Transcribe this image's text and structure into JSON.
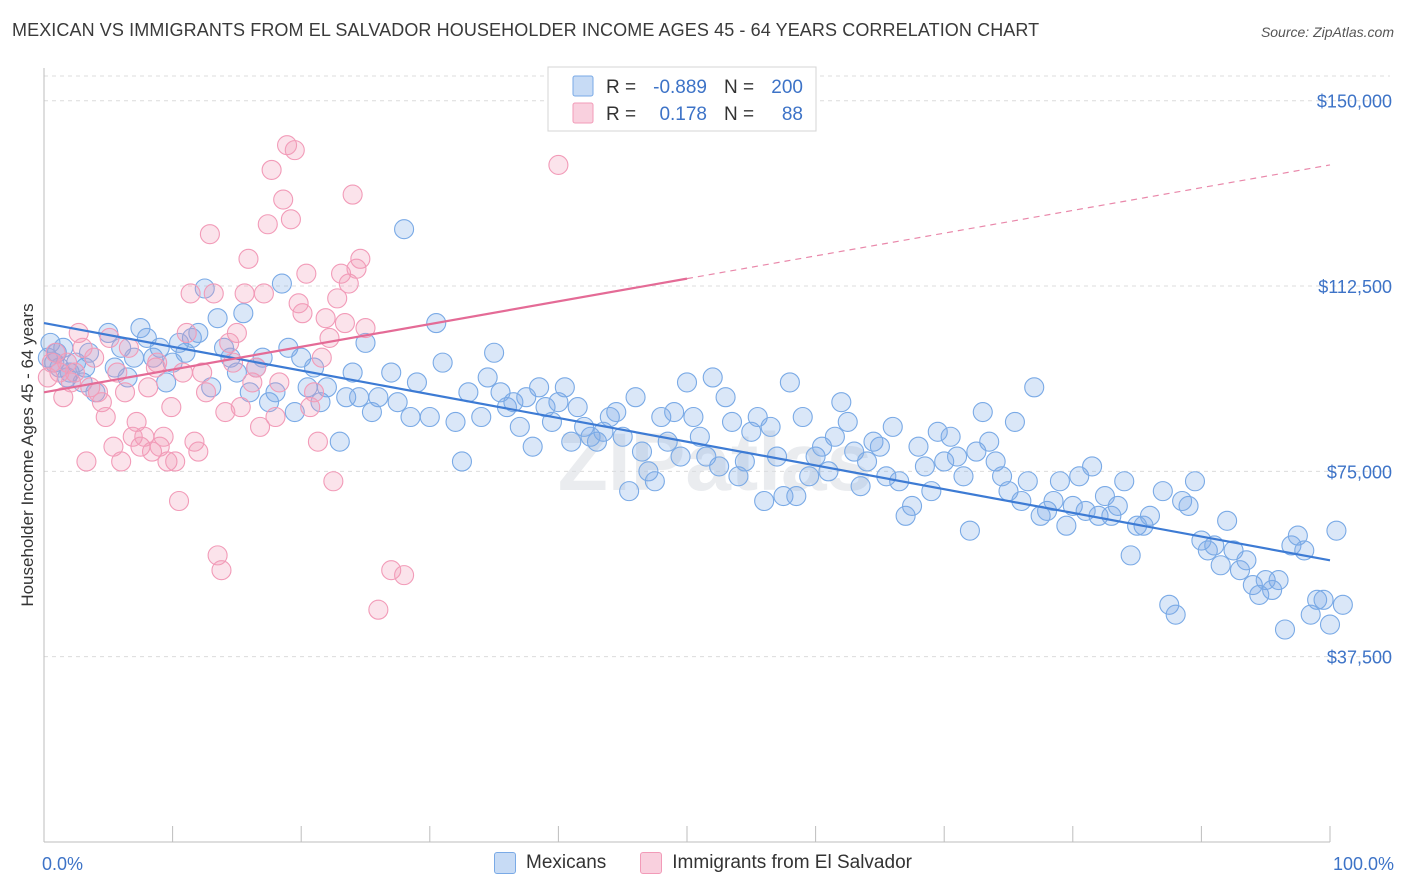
{
  "title": "MEXICAN VS IMMIGRANTS FROM EL SALVADOR HOUSEHOLDER INCOME AGES 45 - 64 YEARS CORRELATION CHART",
  "source": "Source: ZipAtlas.com",
  "watermark": "ZIPatlas",
  "chart_data": {
    "type": "scatter",
    "title": "MEXICAN VS IMMIGRANTS FROM EL SALVADOR HOUSEHOLDER INCOME AGES 45 - 64 YEARS CORRELATION CHART",
    "xlabel": "",
    "ylabel": "Householder Income Ages 45 - 64 years",
    "xlim": [
      0,
      100
    ],
    "ylim": [
      0,
      155000
    ],
    "x_tick_labels": [
      "0.0%",
      "100.0%"
    ],
    "y_ticks": [
      37500,
      75000,
      112500,
      150000
    ],
    "y_tick_labels": [
      "$37,500",
      "$75,000",
      "$112,500",
      "$150,000"
    ],
    "grid": "horizontal dashed",
    "legend_position": "top-center",
    "legend": [
      {
        "r_label": "R =",
        "r_value": "-0.889",
        "n_label": "N =",
        "n_value": "200"
      },
      {
        "r_label": "R =",
        "r_value": "0.178",
        "n_label": "N =",
        "n_value": "88"
      }
    ],
    "series": [
      {
        "name": "Mexicans",
        "color": "#7aaae6",
        "line_color": "#3d7bd4",
        "R": -0.889,
        "N": 200,
        "trend": {
          "x": [
            0,
            100
          ],
          "y": [
            105000,
            57000
          ],
          "dashed_from_x": null
        },
        "points": [
          [
            0.5,
            101000
          ],
          [
            0.8,
            97000
          ],
          [
            1.0,
            99000
          ],
          [
            1.2,
            96000
          ],
          [
            1.5,
            100000
          ],
          [
            2,
            95000
          ],
          [
            2.5,
            97000
          ],
          [
            3,
            93000
          ],
          [
            3.5,
            99000
          ],
          [
            4,
            91000
          ],
          [
            5,
            103000
          ],
          [
            5.5,
            96000
          ],
          [
            6,
            100000
          ],
          [
            7,
            98000
          ],
          [
            7.5,
            104000
          ],
          [
            8,
            102000
          ],
          [
            8.5,
            98000
          ],
          [
            9,
            100000
          ],
          [
            10,
            97000
          ],
          [
            10.5,
            101000
          ],
          [
            11,
            99000
          ],
          [
            12,
            103000
          ],
          [
            12.5,
            112000
          ],
          [
            13,
            92000
          ],
          [
            13.5,
            106000
          ],
          [
            14,
            100000
          ],
          [
            15,
            95000
          ],
          [
            15.5,
            107000
          ],
          [
            16,
            91000
          ],
          [
            17,
            98000
          ],
          [
            17.5,
            89000
          ],
          [
            18,
            91000
          ],
          [
            18.5,
            113000
          ],
          [
            19,
            100000
          ],
          [
            20,
            98000
          ],
          [
            20.5,
            92000
          ],
          [
            21,
            96000
          ],
          [
            21.5,
            89000
          ],
          [
            22,
            92000
          ],
          [
            23,
            81000
          ],
          [
            23.5,
            90000
          ],
          [
            24,
            95000
          ],
          [
            24.5,
            90000
          ],
          [
            25,
            101000
          ],
          [
            25.5,
            87000
          ],
          [
            26,
            90000
          ],
          [
            27,
            95000
          ],
          [
            27.5,
            89000
          ],
          [
            28,
            124000
          ],
          [
            28.5,
            86000
          ],
          [
            29,
            93000
          ],
          [
            30,
            86000
          ],
          [
            30.5,
            105000
          ],
          [
            31,
            97000
          ],
          [
            32,
            85000
          ],
          [
            32.5,
            77000
          ],
          [
            33,
            91000
          ],
          [
            34,
            86000
          ],
          [
            34.5,
            94000
          ],
          [
            35,
            99000
          ],
          [
            35.5,
            91000
          ],
          [
            36,
            88000
          ],
          [
            36.5,
            89000
          ],
          [
            37,
            84000
          ],
          [
            37.5,
            90000
          ],
          [
            38,
            80000
          ],
          [
            38.5,
            92000
          ],
          [
            39,
            88000
          ],
          [
            39.5,
            85000
          ],
          [
            40,
            89000
          ],
          [
            40.5,
            92000
          ],
          [
            41,
            81000
          ],
          [
            41.5,
            88000
          ],
          [
            42,
            84000
          ],
          [
            42.5,
            82000
          ],
          [
            43,
            81000
          ],
          [
            43.5,
            83000
          ],
          [
            44,
            86000
          ],
          [
            44.5,
            87000
          ],
          [
            45,
            82000
          ],
          [
            45.5,
            71000
          ],
          [
            46,
            90000
          ],
          [
            46.5,
            79000
          ],
          [
            47,
            75000
          ],
          [
            47.5,
            73000
          ],
          [
            48,
            86000
          ],
          [
            48.5,
            81000
          ],
          [
            49,
            87000
          ],
          [
            49.5,
            78000
          ],
          [
            50,
            93000
          ],
          [
            50.5,
            86000
          ],
          [
            51,
            82000
          ],
          [
            51.5,
            78000
          ],
          [
            52,
            94000
          ],
          [
            52.5,
            76000
          ],
          [
            53,
            90000
          ],
          [
            53.5,
            85000
          ],
          [
            54,
            74000
          ],
          [
            54.5,
            77000
          ],
          [
            55,
            83000
          ],
          [
            55.5,
            86000
          ],
          [
            56,
            69000
          ],
          [
            56.5,
            84000
          ],
          [
            57,
            78000
          ],
          [
            57.5,
            70000
          ],
          [
            58,
            93000
          ],
          [
            58.5,
            70000
          ],
          [
            59,
            86000
          ],
          [
            59.5,
            74000
          ],
          [
            60,
            78000
          ],
          [
            60.5,
            80000
          ],
          [
            61,
            75000
          ],
          [
            61.5,
            82000
          ],
          [
            62,
            89000
          ],
          [
            62.5,
            85000
          ],
          [
            63,
            79000
          ],
          [
            63.5,
            72000
          ],
          [
            64,
            77000
          ],
          [
            64.5,
            81000
          ],
          [
            65,
            80000
          ],
          [
            65.5,
            74000
          ],
          [
            66,
            84000
          ],
          [
            66.5,
            73000
          ],
          [
            67,
            66000
          ],
          [
            67.5,
            68000
          ],
          [
            68,
            80000
          ],
          [
            68.5,
            76000
          ],
          [
            69,
            71000
          ],
          [
            69.5,
            83000
          ],
          [
            70,
            77000
          ],
          [
            70.5,
            82000
          ],
          [
            71,
            78000
          ],
          [
            71.5,
            74000
          ],
          [
            72,
            63000
          ],
          [
            72.5,
            79000
          ],
          [
            73,
            87000
          ],
          [
            73.5,
            81000
          ],
          [
            74,
            77000
          ],
          [
            74.5,
            74000
          ],
          [
            75,
            71000
          ],
          [
            75.5,
            85000
          ],
          [
            76,
            69000
          ],
          [
            76.5,
            73000
          ],
          [
            77,
            92000
          ],
          [
            77.5,
            66000
          ],
          [
            78,
            67000
          ],
          [
            78.5,
            69000
          ],
          [
            79,
            73000
          ],
          [
            79.5,
            64000
          ],
          [
            80,
            68000
          ],
          [
            80.5,
            74000
          ],
          [
            81,
            67000
          ],
          [
            81.5,
            76000
          ],
          [
            82,
            66000
          ],
          [
            82.5,
            70000
          ],
          [
            83,
            66000
          ],
          [
            83.5,
            68000
          ],
          [
            84,
            73000
          ],
          [
            84.5,
            58000
          ],
          [
            85,
            64000
          ],
          [
            85.5,
            64000
          ],
          [
            86,
            66000
          ],
          [
            87,
            71000
          ],
          [
            87.5,
            48000
          ],
          [
            88,
            46000
          ],
          [
            88.5,
            69000
          ],
          [
            89,
            68000
          ],
          [
            89.5,
            73000
          ],
          [
            90,
            61000
          ],
          [
            90.5,
            59000
          ],
          [
            91,
            60000
          ],
          [
            91.5,
            56000
          ],
          [
            92,
            65000
          ],
          [
            92.5,
            59000
          ],
          [
            93,
            55000
          ],
          [
            93.5,
            57000
          ],
          [
            94,
            52000
          ],
          [
            94.5,
            50000
          ],
          [
            95,
            53000
          ],
          [
            95.5,
            51000
          ],
          [
            96,
            53000
          ],
          [
            96.5,
            43000
          ],
          [
            97,
            60000
          ],
          [
            97.5,
            62000
          ],
          [
            98,
            59000
          ],
          [
            98.5,
            46000
          ],
          [
            99,
            49000
          ],
          [
            99.5,
            49000
          ],
          [
            100,
            44000
          ],
          [
            100.5,
            63000
          ],
          [
            101,
            48000
          ],
          [
            0.3,
            98000
          ],
          [
            1.8,
            94000
          ],
          [
            3.2,
            96000
          ],
          [
            6.5,
            94000
          ],
          [
            9.5,
            93000
          ],
          [
            11.5,
            102000
          ],
          [
            14.5,
            98000
          ],
          [
            16.5,
            96000
          ],
          [
            19.5,
            87000
          ]
        ]
      },
      {
        "name": "Immigrants from El Salvador",
        "color": "#f29bb8",
        "line_color": "#e46b96",
        "R": 0.178,
        "N": 88,
        "trend": {
          "x": [
            0,
            100
          ],
          "y": [
            91000,
            137000
          ],
          "dashed_from_x": 50
        },
        "points": [
          [
            0.3,
            94000
          ],
          [
            0.6,
            97000
          ],
          [
            0.9,
            99000
          ],
          [
            1.2,
            95000
          ],
          [
            1.5,
            90000
          ],
          [
            1.8,
            97000
          ],
          [
            2.1,
            93000
          ],
          [
            2.4,
            95000
          ],
          [
            2.7,
            103000
          ],
          [
            3,
            100000
          ],
          [
            3.3,
            77000
          ],
          [
            3.6,
            92000
          ],
          [
            3.9,
            98000
          ],
          [
            4.2,
            91000
          ],
          [
            4.5,
            89000
          ],
          [
            4.8,
            86000
          ],
          [
            5.1,
            102000
          ],
          [
            5.4,
            80000
          ],
          [
            5.7,
            95000
          ],
          [
            6,
            77000
          ],
          [
            6.3,
            91000
          ],
          [
            6.6,
            100000
          ],
          [
            6.9,
            82000
          ],
          [
            7.2,
            85000
          ],
          [
            7.5,
            80000
          ],
          [
            7.8,
            82000
          ],
          [
            8.1,
            92000
          ],
          [
            8.4,
            79000
          ],
          [
            8.7,
            96000
          ],
          [
            9,
            80000
          ],
          [
            9.3,
            82000
          ],
          [
            9.6,
            77000
          ],
          [
            9.9,
            88000
          ],
          [
            10.2,
            77000
          ],
          [
            10.5,
            69000
          ],
          [
            10.8,
            95000
          ],
          [
            11.1,
            103000
          ],
          [
            11.4,
            111000
          ],
          [
            11.7,
            81000
          ],
          [
            12,
            79000
          ],
          [
            12.3,
            95000
          ],
          [
            12.6,
            91000
          ],
          [
            12.9,
            123000
          ],
          [
            13.2,
            111000
          ],
          [
            13.5,
            58000
          ],
          [
            13.8,
            55000
          ],
          [
            14.1,
            87000
          ],
          [
            14.4,
            101000
          ],
          [
            14.7,
            97000
          ],
          [
            15,
            103000
          ],
          [
            15.3,
            88000
          ],
          [
            15.6,
            111000
          ],
          [
            15.9,
            118000
          ],
          [
            16.2,
            93000
          ],
          [
            16.5,
            96000
          ],
          [
            16.8,
            84000
          ],
          [
            17.1,
            111000
          ],
          [
            17.4,
            125000
          ],
          [
            17.7,
            136000
          ],
          [
            18,
            86000
          ],
          [
            18.3,
            93000
          ],
          [
            18.6,
            130000
          ],
          [
            18.9,
            141000
          ],
          [
            19.2,
            126000
          ],
          [
            19.5,
            140000
          ],
          [
            19.8,
            109000
          ],
          [
            20.1,
            107000
          ],
          [
            20.4,
            115000
          ],
          [
            20.7,
            88000
          ],
          [
            21,
            91000
          ],
          [
            21.3,
            81000
          ],
          [
            21.6,
            98000
          ],
          [
            21.9,
            106000
          ],
          [
            22.2,
            102000
          ],
          [
            22.5,
            73000
          ],
          [
            22.8,
            110000
          ],
          [
            23.1,
            115000
          ],
          [
            23.4,
            105000
          ],
          [
            23.7,
            113000
          ],
          [
            24,
            131000
          ],
          [
            24.3,
            116000
          ],
          [
            24.6,
            118000
          ],
          [
            25,
            104000
          ],
          [
            26,
            47000
          ],
          [
            27,
            55000
          ],
          [
            28,
            54000
          ],
          [
            40,
            137000
          ],
          [
            8.8,
            97000
          ]
        ]
      }
    ]
  },
  "bottom_legend": [
    {
      "label": "Mexicans",
      "color": "#c7dbf5",
      "border": "#7aaae6"
    },
    {
      "label": "Immigrants from El Salvador",
      "color": "#f9d0de",
      "border": "#f29bb8"
    }
  ]
}
